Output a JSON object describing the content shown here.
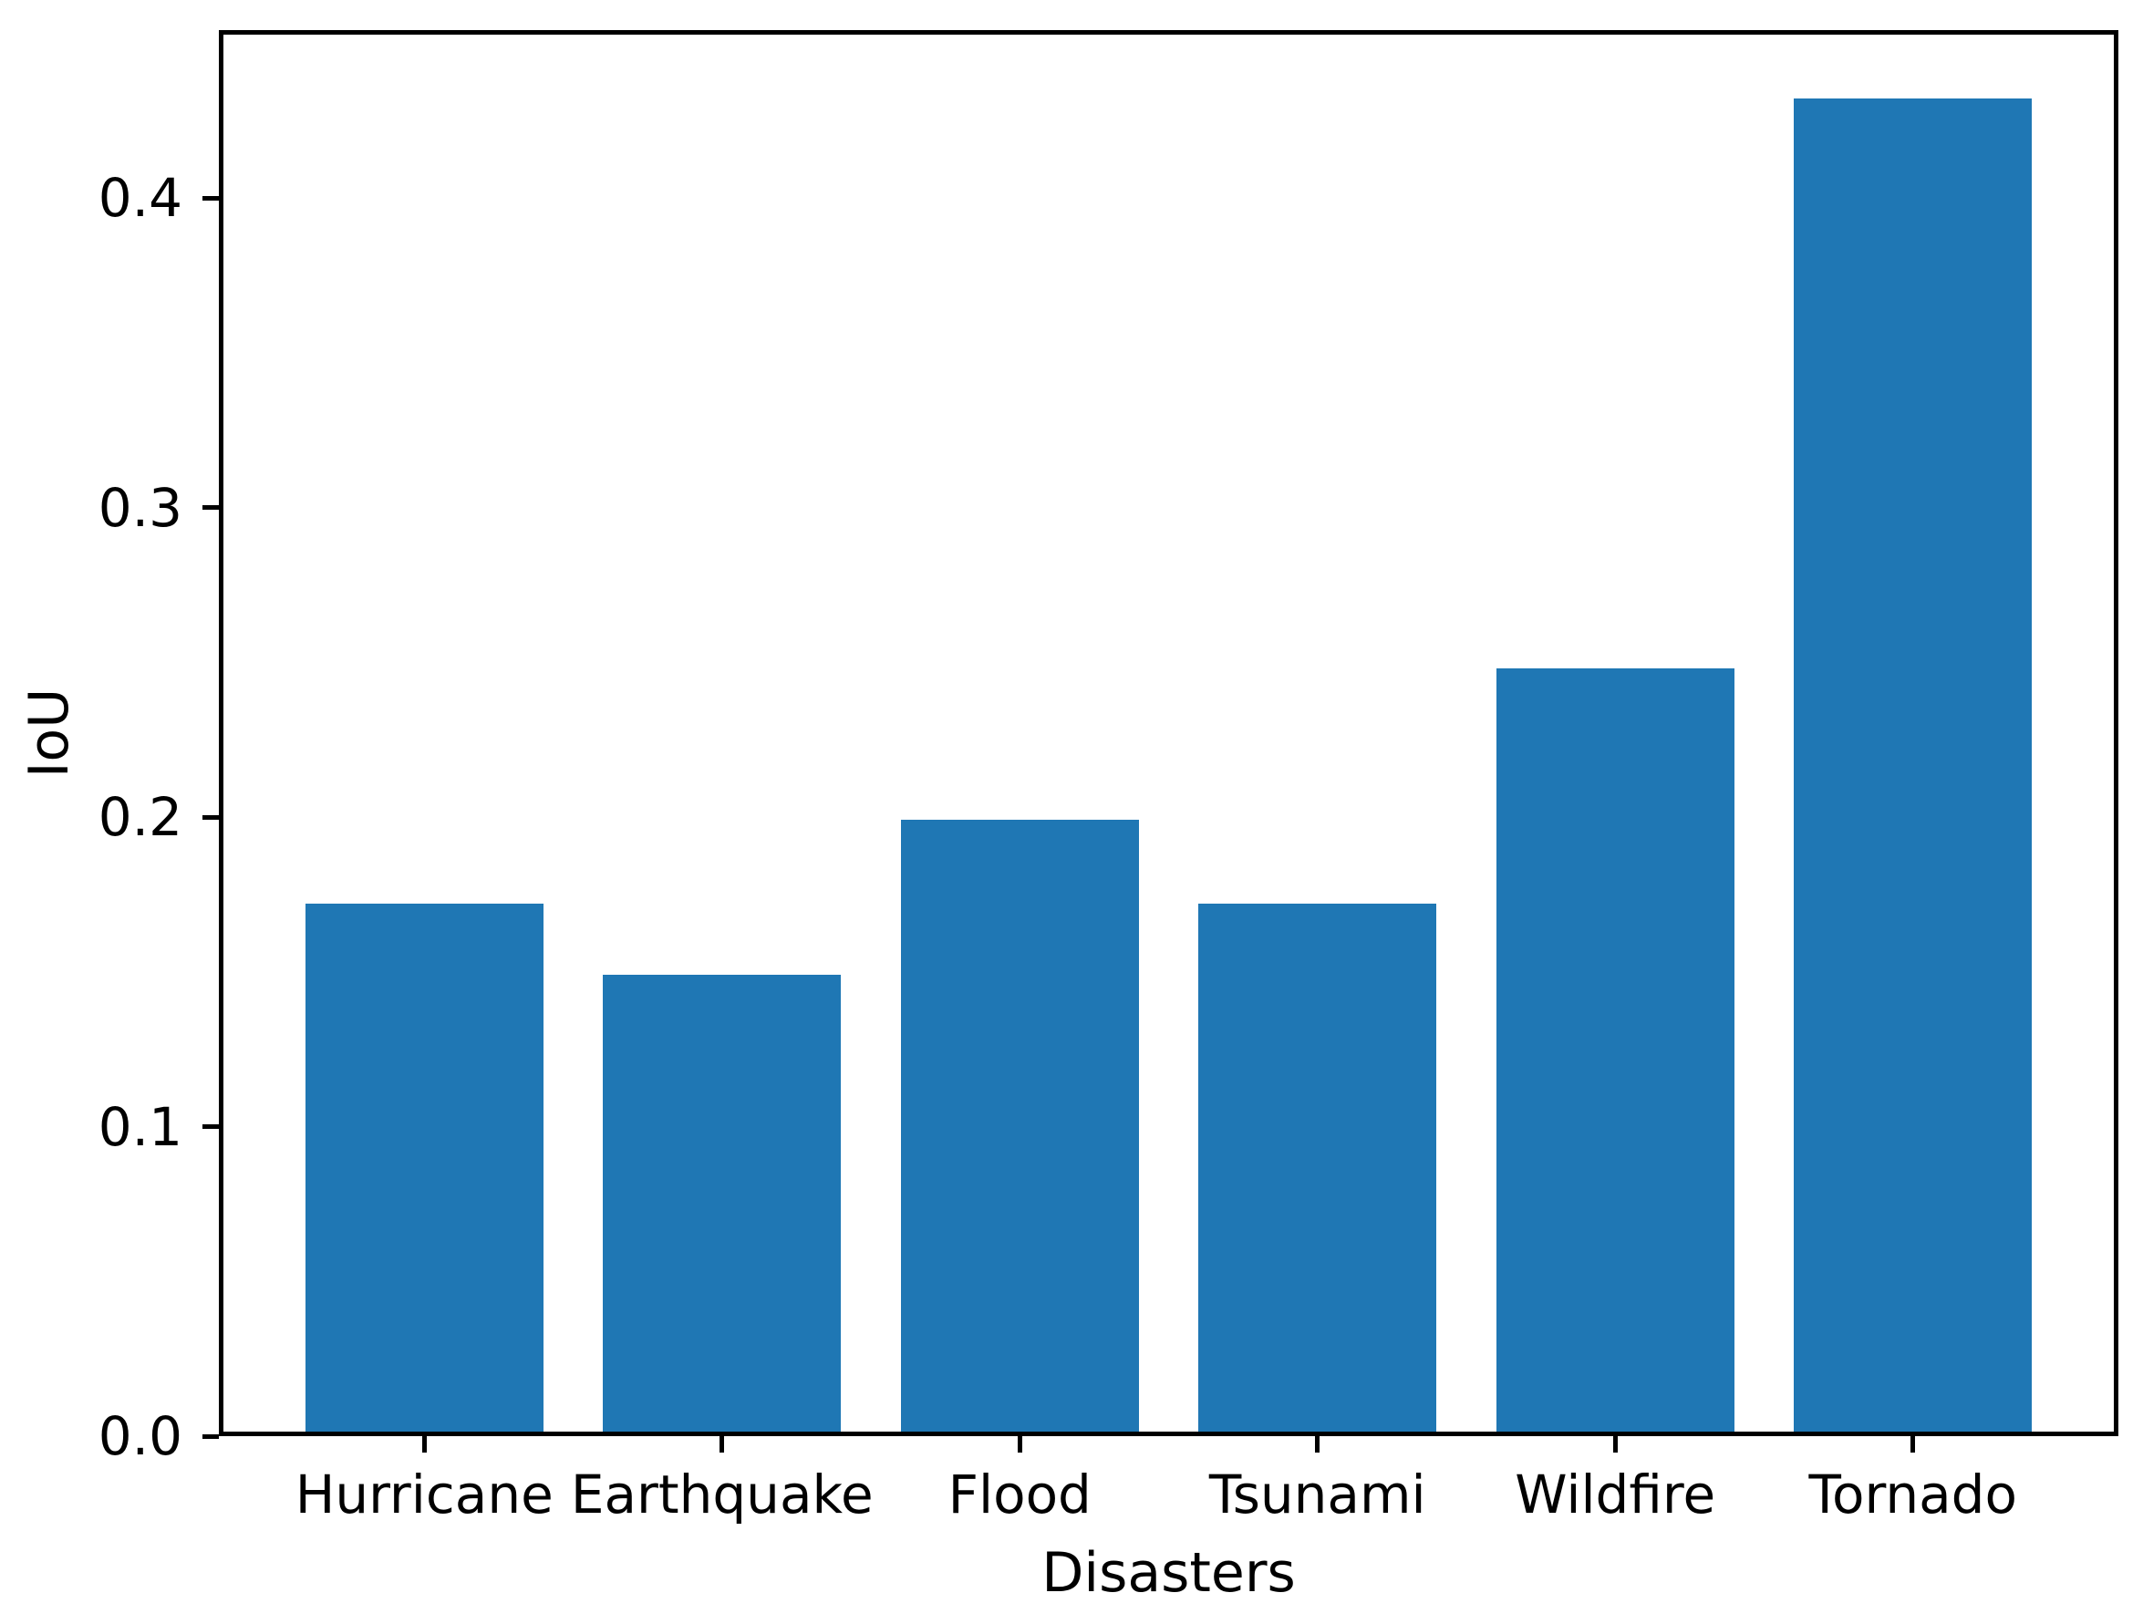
{
  "chart_data": {
    "type": "bar",
    "title": "",
    "xlabel": "Disasters",
    "ylabel": "IoU",
    "categories": [
      "Hurricane",
      "Earthquake",
      "Flood",
      "Tsunami",
      "Wildfire",
      "Tornado"
    ],
    "values": [
      0.172,
      0.149,
      0.199,
      0.172,
      0.248,
      0.432
    ],
    "yticks": [
      0.0,
      0.1,
      0.2,
      0.3,
      0.4
    ],
    "ytick_labels": [
      "0.0",
      "0.1",
      "0.2",
      "0.3",
      "0.4"
    ],
    "ylim": [
      0,
      0.4542
    ],
    "bar_color": "#1f77b4",
    "spine_color": "#000000",
    "text_color": "#000000",
    "background_color": "#ffffff",
    "grid": false,
    "legend": "none",
    "bar_width_fraction": 0.8
  }
}
